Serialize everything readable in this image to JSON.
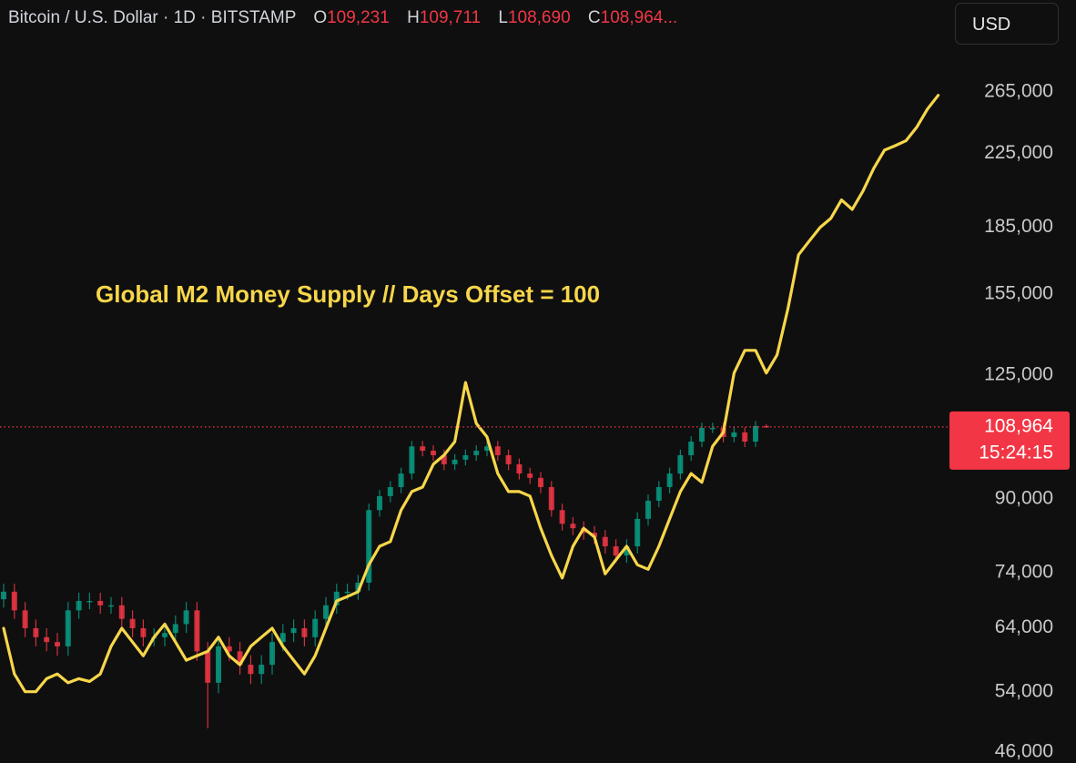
{
  "header": {
    "symbol": "Bitcoin / U.S. Dollar · 1D · BITSTAMP",
    "o_label": "O",
    "o": "109,231",
    "h_label": "H",
    "h": "109,711",
    "l_label": "L",
    "l": "108,690",
    "c_label": "C",
    "c": "108,964...",
    "currency": "USD"
  },
  "chart_data": {
    "type": "candlestick",
    "log_scale": true,
    "ylim": [
      44700,
      338000
    ],
    "yticks": [
      {
        "value": 46000,
        "label": "46,000"
      },
      {
        "value": 54000,
        "label": "54,000"
      },
      {
        "value": 64000,
        "label": "64,000"
      },
      {
        "value": 74000,
        "label": "74,000"
      },
      {
        "value": 90000,
        "label": "90,000"
      },
      {
        "value": 125000,
        "label": "125,000"
      },
      {
        "value": 155000,
        "label": "155,000"
      },
      {
        "value": 185000,
        "label": "185,000"
      },
      {
        "value": 225000,
        "label": "225,000"
      },
      {
        "value": 265000,
        "label": "265,000"
      }
    ],
    "annotation": "Global M2 Money Supply // Days Offset = 100",
    "last_price": {
      "value": 108964,
      "label": "108,964"
    },
    "countdown": "15:24:15",
    "last_price_color": "#f23645",
    "series": [
      {
        "type": "candlestick",
        "up_color": "#089981",
        "down_color": "#f23645",
        "open": [
          69000,
          70400,
          67000,
          63900,
          62400,
          61600,
          60900,
          67000,
          68700,
          68700,
          67900,
          67900,
          65500,
          63900,
          62400,
          62400,
          63100,
          64600,
          67000,
          60100,
          55300,
          60900,
          60100,
          58000,
          56600,
          58000,
          61600,
          63100,
          63900,
          62400,
          65500,
          67900,
          70400,
          70400,
          72100,
          87400,
          90700,
          92900,
          96300,
          103500,
          102300,
          101100,
          98700,
          99900,
          101100,
          102300,
          103500,
          101100,
          98700,
          96300,
          95200,
          92900,
          87400,
          84300,
          83300,
          82300,
          81400,
          79400,
          77500,
          79400,
          85400,
          89600,
          92900,
          96300,
          101100,
          104800,
          108700,
          108700,
          106100,
          107400,
          104800,
          109231,
          null,
          null,
          null,
          null,
          null,
          null,
          null,
          null,
          null,
          null,
          null,
          null,
          null,
          null,
          null,
          null
        ],
        "high": [
          71900,
          71900,
          68500,
          65400,
          63900,
          63100,
          68500,
          70200,
          70200,
          70200,
          69400,
          69400,
          67000,
          65400,
          63900,
          64600,
          66100,
          68500,
          68500,
          61600,
          62400,
          62400,
          61600,
          59500,
          59500,
          63100,
          64600,
          65400,
          65400,
          67000,
          69400,
          71900,
          71900,
          73600,
          88900,
          92200,
          94400,
          97800,
          105000,
          105000,
          103800,
          102600,
          101400,
          102600,
          103800,
          105000,
          105000,
          102600,
          100200,
          97800,
          96700,
          94400,
          88900,
          85800,
          84800,
          83800,
          82900,
          80900,
          80900,
          86900,
          91100,
          94400,
          97800,
          102600,
          106300,
          110200,
          110200,
          110200,
          108900,
          108900,
          110700,
          109711,
          null,
          null,
          null,
          null,
          null,
          null,
          null,
          null,
          null,
          null,
          null,
          null,
          null,
          null,
          null,
          null
        ],
        "low": [
          67500,
          65500,
          62400,
          60900,
          60100,
          59400,
          59400,
          65500,
          67200,
          66400,
          66400,
          64000,
          62400,
          60900,
          60900,
          60900,
          61600,
          63100,
          58600,
          49000,
          53800,
          58600,
          56500,
          55100,
          55100,
          56500,
          60100,
          61600,
          60900,
          60900,
          64000,
          66400,
          68900,
          68900,
          70600,
          85900,
          89200,
          91400,
          94800,
          100800,
          99600,
          97200,
          97200,
          98400,
          99600,
          100800,
          99600,
          97200,
          94800,
          93700,
          91400,
          85900,
          82800,
          81800,
          80800,
          79900,
          77900,
          76000,
          76000,
          77900,
          83900,
          88100,
          91400,
          94800,
          99600,
          103300,
          107200,
          104600,
          104600,
          103300,
          103300,
          108690,
          null,
          null,
          null,
          null,
          null,
          null,
          null,
          null,
          null,
          null,
          null,
          null,
          null,
          null,
          null,
          null
        ],
        "close": [
          70400,
          67000,
          63900,
          62400,
          61600,
          60900,
          67000,
          68700,
          68700,
          67900,
          67900,
          65500,
          63900,
          62400,
          62400,
          63100,
          64600,
          67000,
          60100,
          55300,
          60900,
          60100,
          58000,
          56600,
          58000,
          61600,
          63100,
          63900,
          62400,
          65500,
          67900,
          70400,
          70400,
          72100,
          87400,
          90700,
          92900,
          96300,
          103500,
          102300,
          101100,
          98700,
          99900,
          101100,
          102300,
          103500,
          101100,
          98700,
          96300,
          95200,
          92900,
          87400,
          84300,
          83300,
          82300,
          81400,
          79400,
          77500,
          79400,
          85400,
          89600,
          92900,
          96300,
          101100,
          104800,
          108700,
          108700,
          106100,
          107400,
          104800,
          109231,
          108964,
          null,
          null,
          null,
          null,
          null,
          null,
          null,
          null,
          null,
          null,
          null,
          null,
          null,
          null,
          null,
          null
        ]
      },
      {
        "type": "line",
        "color": "#f7d64a",
        "values": [
          63900,
          56600,
          54000,
          54000,
          55900,
          56600,
          55300,
          55900,
          55500,
          56600,
          60900,
          63900,
          61600,
          59400,
          62400,
          64600,
          61600,
          58700,
          59400,
          60100,
          62400,
          59400,
          58000,
          60900,
          62400,
          63900,
          60900,
          58700,
          56600,
          59400,
          63900,
          68700,
          69500,
          70400,
          75600,
          79400,
          80400,
          87400,
          91800,
          92900,
          98700,
          101100,
          104800,
          122600,
          110000,
          106100,
          96300,
          91800,
          91800,
          90700,
          83300,
          77500,
          73000,
          79400,
          83300,
          81400,
          73800,
          76600,
          79400,
          75600,
          74700,
          79400,
          85400,
          91800,
          96300,
          94100,
          103500,
          107400,
          125700,
          133500,
          133500,
          125700,
          131900,
          148800,
          172000,
          178400,
          184900,
          189400,
          198900,
          194000,
          203700,
          216300,
          227000,
          229700,
          232700,
          241200,
          253100,
          262500
        ]
      }
    ]
  }
}
